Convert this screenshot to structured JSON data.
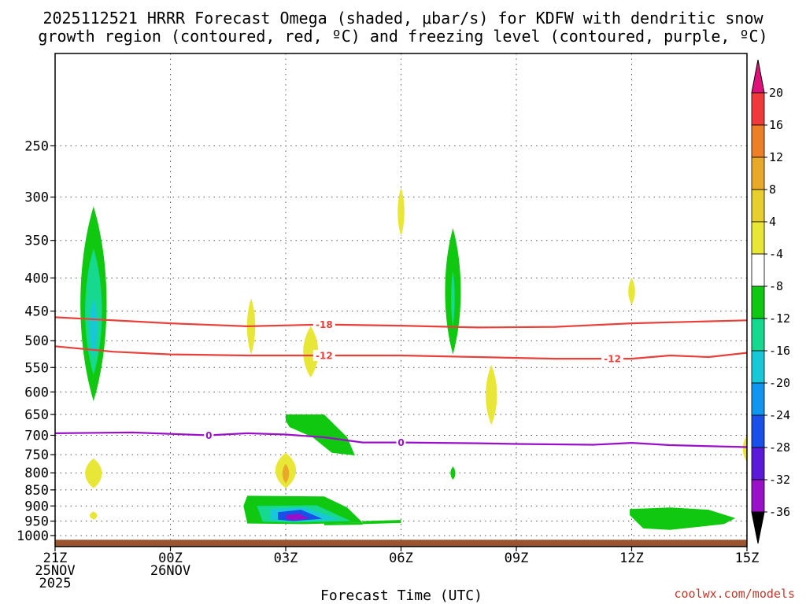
{
  "chart_data": {
    "type": "time-height",
    "title_line1": "2025112521 HRRR Forecast Omega (shaded, μbar/s) for KDFW with dendritic snow",
    "title_line2": "growth region (contoured, red, ºC) and freezing level (contoured, purple, ºC)",
    "xlabel": "Forecast Time (UTC)",
    "credit": "coolwx.com/models",
    "x_range_hours": [
      0,
      18
    ],
    "y_range_hpa": [
      1040,
      180
    ],
    "x_ticks": [
      {
        "h": 0,
        "lines": [
          "21Z",
          "25NOV",
          "2025"
        ]
      },
      {
        "h": 3,
        "lines": [
          "00Z",
          "26NOV"
        ]
      },
      {
        "h": 6,
        "lines": [
          "03Z"
        ]
      },
      {
        "h": 9,
        "lines": [
          "06Z"
        ]
      },
      {
        "h": 12,
        "lines": [
          "09Z"
        ]
      },
      {
        "h": 15,
        "lines": [
          "12Z"
        ]
      },
      {
        "h": 18,
        "lines": [
          "15Z"
        ]
      }
    ],
    "y_ticks": [
      250,
      300,
      350,
      400,
      450,
      500,
      550,
      600,
      650,
      700,
      750,
      800,
      850,
      900,
      950,
      1000
    ],
    "colorbar": {
      "levels": [
        20,
        16,
        12,
        8,
        4,
        -4,
        -8,
        -12,
        -16,
        -20,
        -24,
        -28,
        -32,
        -36
      ],
      "colors": [
        "#ee3a3a",
        "#ef7f27",
        "#e8a82a",
        "#e6cf2e",
        "#e8e637",
        "#ffffff",
        "#10c810",
        "#16d88e",
        "#18c8d8",
        "#1096ee",
        "#1850e8",
        "#5a1ad8",
        "#9a10c8",
        "#a0a0a0"
      ],
      "top_color": "#e0107a",
      "bottom_color": "#000000"
    },
    "omega_cells": [
      {
        "h": 1.0,
        "p0": 620,
        "p1": 310,
        "w": 0.7,
        "color": "#10c810"
      },
      {
        "h": 1.0,
        "p0": 565,
        "p1": 360,
        "w": 0.45,
        "color": "#16d88e"
      },
      {
        "h": 1.0,
        "p0": 530,
        "p1": 430,
        "w": 0.2,
        "color": "#18c8d8"
      },
      {
        "h": 1.0,
        "p0": 845,
        "p1": 760,
        "w": 0.45,
        "color": "#e8e637"
      },
      {
        "h": 1.0,
        "p0": 945,
        "p1": 918,
        "w": 0.2,
        "color": "#e8e637"
      },
      {
        "h": 5.1,
        "p0": 525,
        "p1": 430,
        "w": 0.22,
        "color": "#e8e637"
      },
      {
        "h": 6.0,
        "p0": 845,
        "p1": 745,
        "w": 0.55,
        "color": "#e8e637"
      },
      {
        "h": 6.0,
        "p0": 830,
        "p1": 775,
        "w": 0.18,
        "color": "#e8a82a"
      },
      {
        "h": 6.65,
        "p0": 570,
        "p1": 475,
        "w": 0.4,
        "color": "#e8e637"
      },
      {
        "h": 9.0,
        "p0": 345,
        "p1": 290,
        "w": 0.18,
        "color": "#e8e637"
      },
      {
        "h": 10.35,
        "p0": 525,
        "p1": 335,
        "w": 0.42,
        "color": "#10c810"
      },
      {
        "h": 10.35,
        "p0": 475,
        "p1": 390,
        "w": 0.1,
        "color": "#16d88e"
      },
      {
        "h": 10.35,
        "p0": 820,
        "p1": 782,
        "w": 0.13,
        "color": "#10c810"
      },
      {
        "h": 11.35,
        "p0": 675,
        "p1": 545,
        "w": 0.3,
        "color": "#e8e637"
      },
      {
        "h": 15.0,
        "p0": 440,
        "p1": 400,
        "w": 0.18,
        "color": "#e8e637"
      },
      {
        "h": 18.0,
        "p0": 770,
        "p1": 700,
        "w": 0.22,
        "color": "#e8e637"
      }
    ],
    "omega_patches": [
      {
        "color": "#10c810",
        "pts": [
          [
            6.0,
            650
          ],
          [
            7.0,
            650
          ],
          [
            7.6,
            705
          ],
          [
            7.8,
            752
          ],
          [
            7.2,
            745
          ],
          [
            6.7,
            705
          ],
          [
            6.1,
            680
          ],
          [
            6.0,
            665
          ]
        ]
      },
      {
        "color": "#10c810",
        "pts": [
          [
            5.0,
            868
          ],
          [
            7.0,
            870
          ],
          [
            7.6,
            905
          ],
          [
            8.0,
            955
          ],
          [
            6.5,
            960
          ],
          [
            5.0,
            958
          ],
          [
            4.9,
            900
          ]
        ]
      },
      {
        "color": "#16d88e",
        "pts": [
          [
            5.25,
            900
          ],
          [
            6.8,
            898
          ],
          [
            7.7,
            950
          ],
          [
            6.2,
            955
          ],
          [
            5.4,
            952
          ]
        ]
      },
      {
        "color": "#18c8d8",
        "pts": [
          [
            5.6,
            910
          ],
          [
            6.5,
            905
          ],
          [
            7.4,
            945
          ],
          [
            6.2,
            952
          ],
          [
            5.6,
            945
          ]
        ]
      },
      {
        "color": "#1850e8",
        "pts": [
          [
            5.8,
            920
          ],
          [
            6.4,
            912
          ],
          [
            6.95,
            942
          ],
          [
            6.2,
            950
          ],
          [
            5.8,
            945
          ]
        ]
      },
      {
        "color": "#9a10c8",
        "pts": [
          [
            6.0,
            930
          ],
          [
            6.35,
            925
          ],
          [
            6.6,
            942
          ],
          [
            6.2,
            947
          ],
          [
            6.0,
            943
          ]
        ]
      },
      {
        "color": "#10c810",
        "pts": [
          [
            7.0,
            958
          ],
          [
            8.0,
            955
          ],
          [
            8.0,
            962
          ],
          [
            7.0,
            964
          ]
        ]
      },
      {
        "color": "#10c810",
        "pts": [
          [
            8.0,
            950
          ],
          [
            9.0,
            946
          ],
          [
            9.0,
            956
          ],
          [
            8.0,
            960
          ]
        ]
      },
      {
        "color": "#10c810",
        "pts": [
          [
            14.95,
            910
          ],
          [
            16.0,
            905
          ],
          [
            17.0,
            912
          ],
          [
            17.7,
            940
          ],
          [
            17.4,
            960
          ],
          [
            16.0,
            980
          ],
          [
            15.3,
            975
          ],
          [
            14.95,
            930
          ]
        ]
      }
    ],
    "contours": [
      {
        "label": "-18",
        "color": "#e8403a",
        "label_h": [
          7.0
        ],
        "pts": [
          [
            0,
            460
          ],
          [
            3,
            470
          ],
          [
            5,
            475
          ],
          [
            7,
            472
          ],
          [
            9,
            474
          ],
          [
            11,
            477
          ],
          [
            13,
            476
          ],
          [
            15,
            470
          ],
          [
            18,
            465
          ]
        ]
      },
      {
        "label": "-12",
        "color": "#e8403a",
        "label_h": [
          7.0,
          14.5
        ],
        "pts": [
          [
            0,
            510
          ],
          [
            1.5,
            520
          ],
          [
            3,
            525
          ],
          [
            5,
            527
          ],
          [
            7,
            527
          ],
          [
            9,
            527
          ],
          [
            11,
            530
          ],
          [
            13,
            533
          ],
          [
            15,
            533
          ],
          [
            16,
            527
          ],
          [
            17,
            530
          ],
          [
            18,
            522
          ]
        ]
      },
      {
        "label": "0",
        "color": "#9a10c8",
        "label_h": [
          4.0,
          9.0
        ],
        "pts": [
          [
            0,
            695
          ],
          [
            2,
            693
          ],
          [
            4,
            700
          ],
          [
            5,
            695
          ],
          [
            6,
            698
          ],
          [
            7,
            705
          ],
          [
            8,
            718
          ],
          [
            9,
            718
          ],
          [
            11,
            720
          ],
          [
            12,
            722
          ],
          [
            14,
            724
          ],
          [
            15,
            719
          ],
          [
            16,
            725
          ],
          [
            18,
            730
          ]
        ]
      }
    ],
    "ground": {
      "color": "#9a5530",
      "p_top": 1015
    }
  }
}
